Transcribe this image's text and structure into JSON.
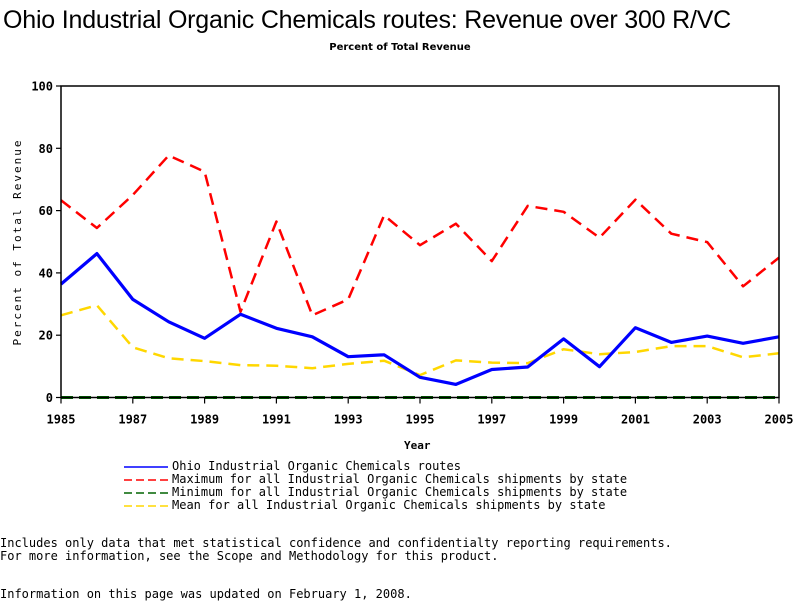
{
  "page": {
    "title": "Ohio Industrial Organic Chemicals routes: Revenue over 300 R/VC",
    "subtitle": "Percent of Total Revenue",
    "footnote_1": "Includes only data that met statistical confidence and confidentialty reporting requirements.",
    "footnote_2": "For more information, see the Scope and Methodology for this product.",
    "updated": "Information on this page was updated on February 1, 2008."
  },
  "chart_data": {
    "type": "line",
    "title": "Ohio Industrial Organic Chemicals routes: Revenue over 300 R/VC",
    "subtitle": "Percent of Total Revenue",
    "xlabel": "Year",
    "ylabel": "Percent of Total Revenue",
    "xlim": [
      1985,
      2005
    ],
    "ylim": [
      0,
      100
    ],
    "x_ticks": [
      "1985",
      "1987",
      "1989",
      "1991",
      "1993",
      "1995",
      "1997",
      "1999",
      "2001",
      "2003",
      "2005"
    ],
    "y_ticks": [
      "0",
      "20",
      "40",
      "60",
      "80",
      "100"
    ],
    "grid": false,
    "legend_position": "bottom",
    "x": [
      1985,
      1986,
      1987,
      1988,
      1989,
      1990,
      1991,
      1992,
      1993,
      1994,
      1995,
      1996,
      1997,
      1998,
      1999,
      2000,
      2001,
      2002,
      2003,
      2004,
      2005
    ],
    "series": [
      {
        "name": "Ohio Industrial Organic Chemicals routes",
        "color": "#0000ff",
        "style": "solid",
        "values": [
          36.4,
          46.2,
          31.5,
          24.3,
          19.0,
          26.7,
          22.2,
          19.5,
          13.1,
          13.7,
          6.5,
          4.2,
          9.0,
          9.8,
          18.8,
          9.9,
          22.4,
          17.7,
          19.7,
          17.4,
          19.5
        ]
      },
      {
        "name": "Maximum for all Industrial Organic Chemicals shipments by state",
        "color": "#ff0000",
        "style": "dashed",
        "values": [
          63.3,
          54.4,
          65.0,
          77.7,
          72.5,
          27.5,
          56.5,
          26.4,
          31.5,
          58.5,
          48.9,
          55.8,
          43.8,
          61.5,
          59.6,
          51.3,
          63.5,
          52.6,
          49.9,
          35.7,
          44.9
        ]
      },
      {
        "name": "Minimum for all Industrial Organic Chemicals shipments by state",
        "color": "#006400",
        "style": "dashed",
        "values": [
          0,
          0,
          0,
          0,
          0,
          0,
          0,
          0,
          0,
          0,
          0,
          0,
          0,
          0,
          0,
          0,
          0,
          0,
          0,
          0,
          0
        ]
      },
      {
        "name": "Mean for all Industrial Organic Chemicals shipments by state",
        "color": "#ffd700",
        "style": "dashed",
        "values": [
          26.4,
          29.6,
          16.1,
          12.6,
          11.7,
          10.4,
          10.2,
          9.4,
          10.8,
          11.8,
          7.2,
          11.9,
          11.2,
          11.0,
          15.5,
          13.9,
          14.6,
          16.5,
          16.5,
          12.9,
          14.2
        ]
      }
    ]
  }
}
